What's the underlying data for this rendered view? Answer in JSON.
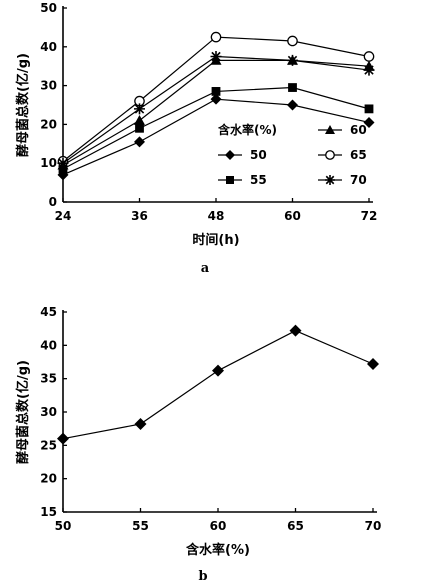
{
  "chart_data": [
    {
      "type": "line",
      "panel_label": "a",
      "xlabel": "时间(h)",
      "ylabel": "酵母菌总数(亿/g)",
      "x": [
        24,
        36,
        48,
        60,
        72
      ],
      "ylim": [
        0,
        50
      ],
      "y_ticks": [
        0,
        10,
        20,
        30,
        40,
        50
      ],
      "grid": false,
      "legend_title": "含水率(%)",
      "legend_position": "lower-right",
      "series": [
        {
          "name": "50",
          "marker": "diamond",
          "values": [
            7,
            15.5,
            26.5,
            25,
            20.5
          ]
        },
        {
          "name": "55",
          "marker": "square",
          "values": [
            8.5,
            19,
            28.5,
            29.5,
            24
          ]
        },
        {
          "name": "60",
          "marker": "triangle",
          "values": [
            9.5,
            21,
            36.5,
            36.5,
            35
          ]
        },
        {
          "name": "65",
          "marker": "circle-open",
          "values": [
            10.5,
            26,
            42.5,
            41.5,
            37.5
          ]
        },
        {
          "name": "70",
          "marker": "star",
          "values": [
            10,
            24,
            37.5,
            36.5,
            34
          ]
        }
      ]
    },
    {
      "type": "line",
      "panel_label": "b",
      "xlabel": "含水率(%)",
      "ylabel": "酵母菌总数(亿/g)",
      "x": [
        50,
        55,
        60,
        65,
        70
      ],
      "ylim": [
        15,
        45
      ],
      "y_ticks": [
        15,
        20,
        25,
        30,
        35,
        40,
        45
      ],
      "grid": false,
      "series": [
        {
          "marker": "diamond",
          "values": [
            26,
            28.2,
            36.2,
            42.2,
            37.2
          ]
        }
      ]
    }
  ]
}
